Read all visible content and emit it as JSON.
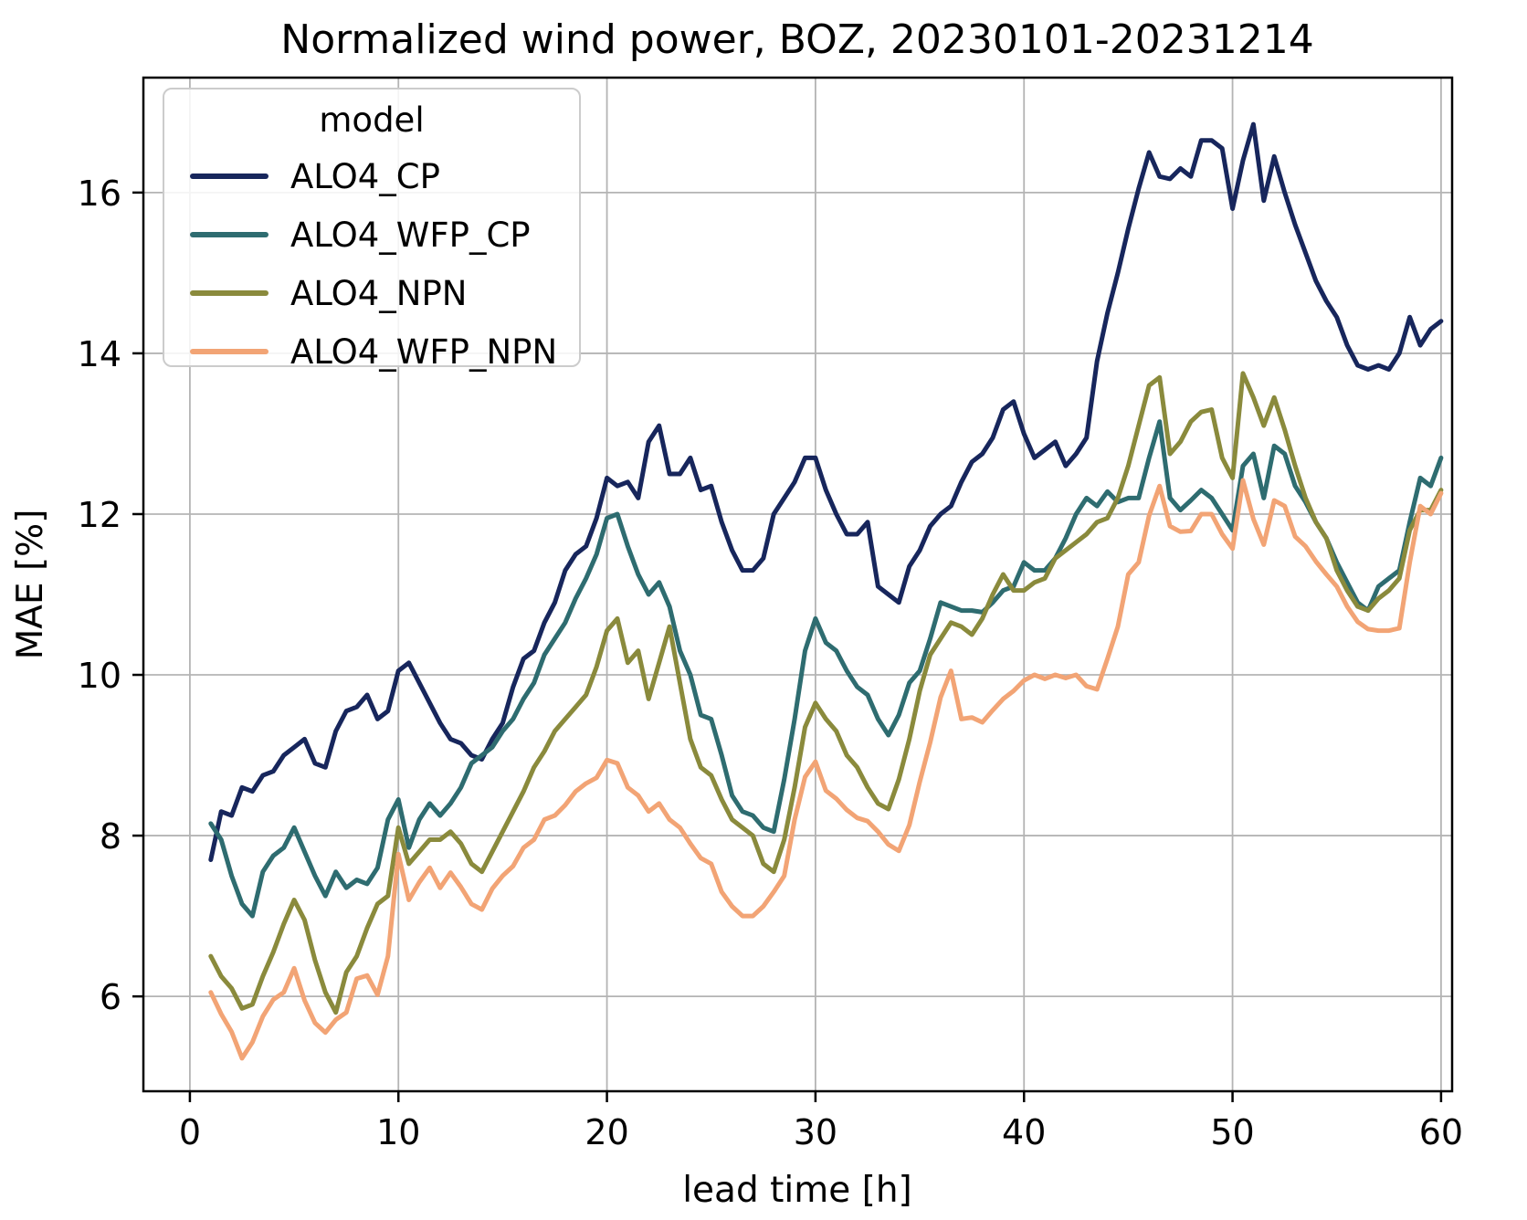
{
  "figure": {
    "kind": "matplotlib-line-figure",
    "background": "#ffffff",
    "grid_color": "#b4b4b4",
    "spine_color": "#000000"
  },
  "legend": {
    "title": "model",
    "position": "upper left"
  },
  "chart_data": {
    "type": "line",
    "title": "Normalized wind power, BOZ, 20230101-20231214",
    "xlabel": "lead time [h]",
    "ylabel": "MAE [%]",
    "xlim": [
      -2.23,
      60.53
    ],
    "ylim": [
      4.82,
      17.43
    ],
    "xticks": [
      0,
      10,
      20,
      30,
      40,
      50,
      60
    ],
    "yticks": [
      6,
      8,
      10,
      12,
      14,
      16
    ],
    "grid": true,
    "x_start": 1.0,
    "x_step": 0.5,
    "series": [
      {
        "name": "ALO4_CP",
        "color": "#17265c",
        "values": [
          7.7,
          8.3,
          8.25,
          8.6,
          8.55,
          8.75,
          8.8,
          9.0,
          9.1,
          9.2,
          8.9,
          8.85,
          9.3,
          9.55,
          9.6,
          9.75,
          9.45,
          9.55,
          10.05,
          10.15,
          9.9,
          9.65,
          9.4,
          9.2,
          9.15,
          9.0,
          8.95,
          9.2,
          9.4,
          9.85,
          10.2,
          10.3,
          10.65,
          10.9,
          11.3,
          11.5,
          11.6,
          11.95,
          12.45,
          12.35,
          12.4,
          12.2,
          12.9,
          13.1,
          12.5,
          12.5,
          12.7,
          12.3,
          12.35,
          11.9,
          11.55,
          11.3,
          11.3,
          11.45,
          12.0,
          12.2,
          12.4,
          12.7,
          12.7,
          12.3,
          12.0,
          11.75,
          11.75,
          11.9,
          11.1,
          11.0,
          10.9,
          11.35,
          11.55,
          11.85,
          12.0,
          12.1,
          12.4,
          12.65,
          12.75,
          12.95,
          13.3,
          13.4,
          13.0,
          12.7,
          12.8,
          12.9,
          12.6,
          12.75,
          12.95,
          13.9,
          14.5,
          15.0,
          15.55,
          16.05,
          16.5,
          16.2,
          16.17,
          16.3,
          16.2,
          16.65,
          16.65,
          16.55,
          15.8,
          16.4,
          16.85,
          15.9,
          16.45,
          16.0,
          15.6,
          15.25,
          14.9,
          14.65,
          14.45,
          14.1,
          13.85,
          13.8,
          13.85,
          13.8,
          14.0,
          14.45,
          14.1,
          14.3,
          14.4
        ]
      },
      {
        "name": "ALO4_WFP_CP",
        "color": "#2e6c70",
        "values": [
          8.15,
          7.95,
          7.5,
          7.15,
          7.0,
          7.55,
          7.75,
          7.85,
          8.1,
          7.8,
          7.5,
          7.25,
          7.55,
          7.35,
          7.45,
          7.4,
          7.6,
          8.2,
          8.45,
          7.85,
          8.2,
          8.4,
          8.25,
          8.4,
          8.6,
          8.9,
          9.0,
          9.1,
          9.3,
          9.45,
          9.7,
          9.9,
          10.25,
          10.45,
          10.65,
          10.95,
          11.2,
          11.5,
          11.95,
          12.0,
          11.6,
          11.25,
          11.0,
          11.15,
          10.85,
          10.3,
          10.0,
          9.5,
          9.45,
          9.0,
          8.5,
          8.3,
          8.25,
          8.1,
          8.05,
          8.7,
          9.45,
          10.3,
          10.7,
          10.4,
          10.3,
          10.05,
          9.85,
          9.75,
          9.45,
          9.25,
          9.5,
          9.9,
          10.05,
          10.45,
          10.9,
          10.85,
          10.8,
          10.8,
          10.78,
          10.9,
          11.05,
          11.1,
          11.4,
          11.3,
          11.3,
          11.45,
          11.7,
          12.0,
          12.2,
          12.1,
          12.28,
          12.15,
          12.2,
          12.2,
          12.7,
          13.15,
          12.2,
          12.05,
          12.17,
          12.3,
          12.2,
          12.0,
          11.8,
          12.6,
          12.75,
          12.2,
          12.85,
          12.75,
          12.35,
          12.15,
          11.9,
          11.7,
          11.4,
          11.15,
          10.9,
          10.8,
          11.1,
          11.2,
          11.3,
          11.9,
          12.45,
          12.35,
          12.7
        ]
      },
      {
        "name": "ALO4_NPN",
        "color": "#8a8a3c",
        "values": [
          6.5,
          6.25,
          6.1,
          5.85,
          5.9,
          6.25,
          6.55,
          6.9,
          7.2,
          6.95,
          6.45,
          6.05,
          5.8,
          6.3,
          6.5,
          6.85,
          7.15,
          7.25,
          8.1,
          7.65,
          7.8,
          7.95,
          7.95,
          8.05,
          7.9,
          7.65,
          7.55,
          7.8,
          8.05,
          8.3,
          8.55,
          8.85,
          9.05,
          9.3,
          9.45,
          9.6,
          9.75,
          10.1,
          10.55,
          10.7,
          10.15,
          10.3,
          9.7,
          10.15,
          10.6,
          9.9,
          9.2,
          8.85,
          8.75,
          8.45,
          8.2,
          8.1,
          8.0,
          7.65,
          7.55,
          7.95,
          8.6,
          9.35,
          9.65,
          9.45,
          9.3,
          9.0,
          8.85,
          8.6,
          8.4,
          8.33,
          8.7,
          9.2,
          9.8,
          10.25,
          10.45,
          10.65,
          10.6,
          10.5,
          10.7,
          11.0,
          11.25,
          11.05,
          11.05,
          11.15,
          11.2,
          11.45,
          11.55,
          11.65,
          11.75,
          11.9,
          11.95,
          12.2,
          12.6,
          13.1,
          13.6,
          13.7,
          12.75,
          12.9,
          13.15,
          13.27,
          13.3,
          12.7,
          12.45,
          13.75,
          13.45,
          13.1,
          13.45,
          13.05,
          12.6,
          12.2,
          11.9,
          11.7,
          11.3,
          11.05,
          10.85,
          10.8,
          10.95,
          11.05,
          11.2,
          11.8,
          12.05,
          12.05,
          12.3
        ]
      },
      {
        "name": "ALO4_WFP_NPN",
        "color": "#f2a475",
        "values": [
          6.05,
          5.78,
          5.56,
          5.23,
          5.43,
          5.75,
          5.96,
          6.05,
          6.35,
          5.95,
          5.67,
          5.55,
          5.71,
          5.8,
          6.22,
          6.26,
          6.02,
          6.5,
          7.77,
          7.2,
          7.42,
          7.6,
          7.35,
          7.54,
          7.36,
          7.15,
          7.08,
          7.34,
          7.5,
          7.62,
          7.85,
          7.95,
          8.2,
          8.25,
          8.38,
          8.55,
          8.65,
          8.72,
          8.94,
          8.9,
          8.6,
          8.5,
          8.3,
          8.4,
          8.2,
          8.1,
          7.9,
          7.72,
          7.65,
          7.3,
          7.12,
          7.0,
          7.0,
          7.12,
          7.3,
          7.5,
          8.2,
          8.73,
          8.92,
          8.56,
          8.46,
          8.32,
          8.22,
          8.18,
          8.05,
          7.89,
          7.81,
          8.13,
          8.67,
          9.16,
          9.72,
          10.05,
          9.45,
          9.47,
          9.41,
          9.56,
          9.7,
          9.8,
          9.93,
          10.0,
          9.95,
          10.0,
          9.96,
          10.0,
          9.86,
          9.82,
          10.2,
          10.6,
          11.25,
          11.4,
          11.98,
          12.35,
          11.85,
          11.78,
          11.79,
          12.0,
          12.0,
          11.75,
          11.57,
          12.42,
          11.94,
          11.62,
          12.17,
          12.1,
          11.72,
          11.6,
          11.41,
          11.25,
          11.1,
          10.85,
          10.66,
          10.57,
          10.55,
          10.55,
          10.58,
          11.4,
          12.1,
          12.0,
          12.26
        ]
      }
    ]
  }
}
